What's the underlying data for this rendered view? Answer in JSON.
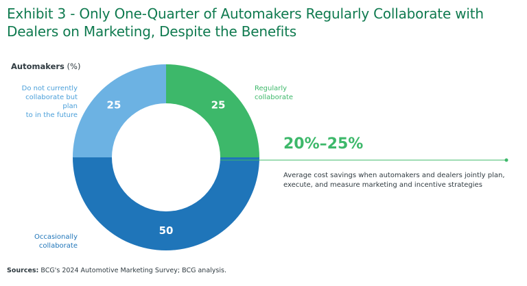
{
  "title": "Exhibit 3 - Only One-Quarter of Automakers Regularly Collaborate with Dealers on Marketing, Despite the Benefits",
  "colors": {
    "title": "#0f7a4f",
    "regular": "#3db86a",
    "occasional": "#1f75b9",
    "planning": "#6cb2e3",
    "highlight": "#3db86a"
  },
  "chart_data": {
    "type": "pie",
    "variant": "donut",
    "group_label": "Automakers",
    "group_unit": "(%)",
    "slices": [
      {
        "label": "Regularly collaborate",
        "value": 25,
        "color": "#3db86a"
      },
      {
        "label": "Occasionally collaborate",
        "value": 50,
        "color": "#1f75b9"
      },
      {
        "label": "Do not currently collaborate but plan to in the future",
        "value": 25,
        "color": "#6cb2e3"
      }
    ],
    "slice_value_labels": [
      "25",
      "50",
      "25"
    ]
  },
  "labels": {
    "regular": "Regularly\ncollaborate",
    "occasional": "Occasionally\ncollaborate",
    "planning": "Do not currently\ncollaborate but plan\nto in the future"
  },
  "highlight": {
    "value": "20%–25%",
    "caption": "Average cost savings when automakers and dealers jointly plan, execute, and measure marketing and incentive strategies"
  },
  "sources": {
    "label": "Sources:",
    "text": "BCG's 2024 Automotive Marketing Survey; BCG analysis."
  }
}
